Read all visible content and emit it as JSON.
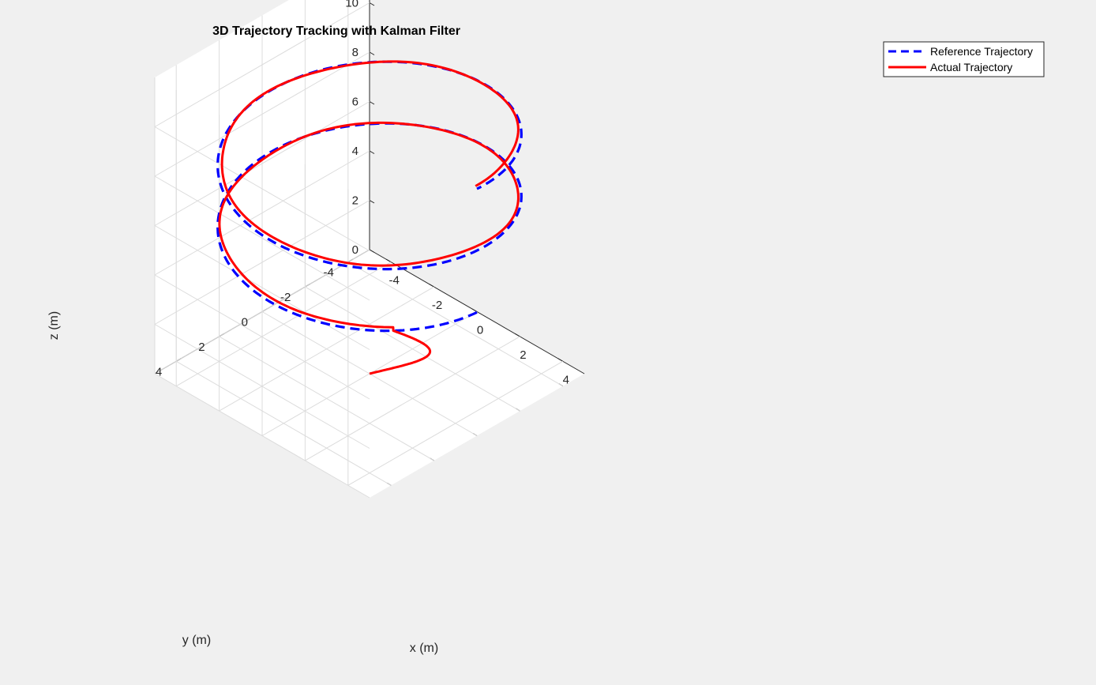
{
  "chart_data": {
    "type": "line3d",
    "title": "3D Trajectory Tracking with Kalman Filter",
    "xlabel": "x (m)",
    "ylabel": "y (m)",
    "zlabel": "z (m)",
    "xlim": [
      -5,
      5
    ],
    "ylim": [
      -5,
      5
    ],
    "zlim": [
      0,
      12
    ],
    "xticks": [
      -4,
      -2,
      0,
      2,
      4
    ],
    "yticks": [
      -4,
      -2,
      0,
      2,
      4
    ],
    "zticks": [
      0,
      2,
      4,
      6,
      8,
      10
    ],
    "grid": true,
    "legend_location": "top-right",
    "series": [
      {
        "name": "Reference Trajectory",
        "color": "#0000ff",
        "style": "dashed",
        "description_values": {
          "radius": 5,
          "z_start": 5,
          "z_end": 10,
          "turns": 2
        }
      },
      {
        "name": "Actual Trajectory",
        "color": "#ff0000",
        "style": "solid",
        "description_values": {
          "start": [
            0,
            0,
            0
          ],
          "converges_to": "Reference Trajectory"
        }
      }
    ]
  },
  "legend": {
    "items": [
      {
        "label": "Reference Trajectory"
      },
      {
        "label": "Actual Trajectory"
      }
    ]
  }
}
